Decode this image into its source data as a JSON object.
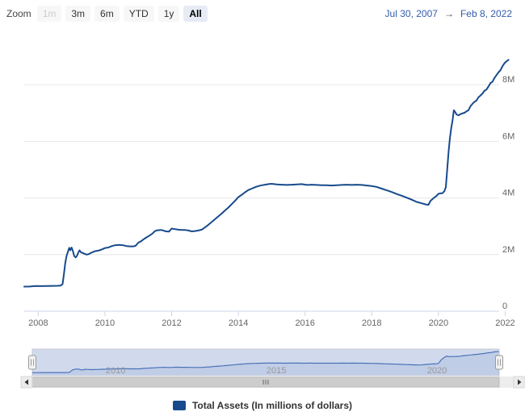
{
  "toolbar": {
    "zoom_label": "Zoom",
    "buttons": [
      {
        "label": "1m",
        "state": "disabled"
      },
      {
        "label": "3m",
        "state": "normal"
      },
      {
        "label": "6m",
        "state": "normal"
      },
      {
        "label": "YTD",
        "state": "normal"
      },
      {
        "label": "1y",
        "state": "normal"
      },
      {
        "label": "All",
        "state": "selected"
      }
    ]
  },
  "range": {
    "from": "Jul 30, 2007",
    "arrow": "→",
    "to": "Feb 8, 2022"
  },
  "legend": {
    "label": "Total Assets (In millions of dollars)"
  },
  "chart_data": {
    "type": "line",
    "title": "",
    "xlabel": "",
    "ylabel": "",
    "xlim": [
      2007.58,
      2022.11
    ],
    "ylim": [
      0,
      9200000
    ],
    "grid": true,
    "legend_position": "bottom",
    "xticks": [
      {
        "value": 2008,
        "label": "2008"
      },
      {
        "value": 2010,
        "label": "2010"
      },
      {
        "value": 2012,
        "label": "2012"
      },
      {
        "value": 2014,
        "label": "2014"
      },
      {
        "value": 2016,
        "label": "2016"
      },
      {
        "value": 2018,
        "label": "2018"
      },
      {
        "value": 2020,
        "label": "2020"
      },
      {
        "value": 2022,
        "label": "2022"
      }
    ],
    "yticks": [
      {
        "value": 0,
        "label": "0"
      },
      {
        "value": 2000000,
        "label": "2M"
      },
      {
        "value": 4000000,
        "label": "4M"
      },
      {
        "value": 6000000,
        "label": "6M"
      },
      {
        "value": 8000000,
        "label": "8M"
      }
    ],
    "nav_xticks": [
      {
        "value": 2010,
        "label": "2010"
      },
      {
        "value": 2015,
        "label": "2015"
      },
      {
        "value": 2020,
        "label": "2020"
      }
    ],
    "colors": {
      "series": "#174a8c",
      "grid": "#e6e6e6",
      "axis_line": "#ccd6eb",
      "tick_label": "#666666",
      "nav_mask": "rgba(102,133,194,0.3)",
      "nav_outline": "#c3c9d5",
      "nav_line": "#4a72b8",
      "nav_fill": "rgba(74,114,184,0.12)",
      "nav_label": "#999999",
      "handle_fill": "#f2f2f2",
      "handle_stroke": "#999999",
      "scroll_track": "#ededed",
      "scroll_thumb": "#cdcdcd",
      "scroll_thumb_border": "#bbbbbb",
      "scroll_arrow": "#333333",
      "accent": "#335cad"
    },
    "series": [
      {
        "name": "Total Assets (In millions of dollars)",
        "points": [
          [
            2007.58,
            870000
          ],
          [
            2007.75,
            872000
          ],
          [
            2007.92,
            891000
          ],
          [
            2008.08,
            885000
          ],
          [
            2008.25,
            889000
          ],
          [
            2008.42,
            893000
          ],
          [
            2008.58,
            898000
          ],
          [
            2008.68,
            910000
          ],
          [
            2008.73,
            960000
          ],
          [
            2008.77,
            1300000
          ],
          [
            2008.81,
            1700000
          ],
          [
            2008.85,
            1950000
          ],
          [
            2008.89,
            2100000
          ],
          [
            2008.93,
            2240000
          ],
          [
            2008.96,
            2150000
          ],
          [
            2009.0,
            2250000
          ],
          [
            2009.04,
            2120000
          ],
          [
            2009.08,
            1950000
          ],
          [
            2009.12,
            1900000
          ],
          [
            2009.16,
            1950000
          ],
          [
            2009.2,
            2070000
          ],
          [
            2009.24,
            2150000
          ],
          [
            2009.28,
            2080000
          ],
          [
            2009.33,
            2060000
          ],
          [
            2009.38,
            2030000
          ],
          [
            2009.45,
            2000000
          ],
          [
            2009.52,
            2020000
          ],
          [
            2009.6,
            2070000
          ],
          [
            2009.7,
            2120000
          ],
          [
            2009.8,
            2140000
          ],
          [
            2009.9,
            2180000
          ],
          [
            2010.0,
            2230000
          ],
          [
            2010.1,
            2250000
          ],
          [
            2010.2,
            2300000
          ],
          [
            2010.3,
            2330000
          ],
          [
            2010.42,
            2340000
          ],
          [
            2010.55,
            2330000
          ],
          [
            2010.65,
            2300000
          ],
          [
            2010.75,
            2290000
          ],
          [
            2010.85,
            2290000
          ],
          [
            2010.92,
            2310000
          ],
          [
            2011.0,
            2420000
          ],
          [
            2011.08,
            2470000
          ],
          [
            2011.17,
            2550000
          ],
          [
            2011.25,
            2610000
          ],
          [
            2011.33,
            2670000
          ],
          [
            2011.42,
            2740000
          ],
          [
            2011.5,
            2830000
          ],
          [
            2011.58,
            2860000
          ],
          [
            2011.67,
            2870000
          ],
          [
            2011.75,
            2850000
          ],
          [
            2011.83,
            2820000
          ],
          [
            2011.92,
            2810000
          ],
          [
            2012.0,
            2920000
          ],
          [
            2012.1,
            2900000
          ],
          [
            2012.2,
            2880000
          ],
          [
            2012.3,
            2870000
          ],
          [
            2012.4,
            2870000
          ],
          [
            2012.5,
            2850000
          ],
          [
            2012.6,
            2820000
          ],
          [
            2012.7,
            2830000
          ],
          [
            2012.8,
            2850000
          ],
          [
            2012.9,
            2880000
          ],
          [
            2013.0,
            2960000
          ],
          [
            2013.1,
            3050000
          ],
          [
            2013.2,
            3150000
          ],
          [
            2013.3,
            3250000
          ],
          [
            2013.4,
            3350000
          ],
          [
            2013.5,
            3450000
          ],
          [
            2013.6,
            3560000
          ],
          [
            2013.7,
            3660000
          ],
          [
            2013.8,
            3780000
          ],
          [
            2013.9,
            3900000
          ],
          [
            2014.0,
            4030000
          ],
          [
            2014.1,
            4110000
          ],
          [
            2014.2,
            4200000
          ],
          [
            2014.3,
            4280000
          ],
          [
            2014.4,
            4330000
          ],
          [
            2014.5,
            4380000
          ],
          [
            2014.6,
            4420000
          ],
          [
            2014.7,
            4450000
          ],
          [
            2014.8,
            4470000
          ],
          [
            2014.9,
            4490000
          ],
          [
            2015.0,
            4500000
          ],
          [
            2015.15,
            4480000
          ],
          [
            2015.3,
            4470000
          ],
          [
            2015.45,
            4460000
          ],
          [
            2015.6,
            4470000
          ],
          [
            2015.75,
            4480000
          ],
          [
            2015.9,
            4490000
          ],
          [
            2016.05,
            4460000
          ],
          [
            2016.2,
            4470000
          ],
          [
            2016.35,
            4460000
          ],
          [
            2016.5,
            4450000
          ],
          [
            2016.65,
            4450000
          ],
          [
            2016.8,
            4440000
          ],
          [
            2016.95,
            4450000
          ],
          [
            2017.1,
            4460000
          ],
          [
            2017.25,
            4470000
          ],
          [
            2017.4,
            4460000
          ],
          [
            2017.55,
            4470000
          ],
          [
            2017.7,
            4460000
          ],
          [
            2017.85,
            4440000
          ],
          [
            2018.0,
            4420000
          ],
          [
            2018.15,
            4390000
          ],
          [
            2018.3,
            4330000
          ],
          [
            2018.45,
            4270000
          ],
          [
            2018.6,
            4210000
          ],
          [
            2018.75,
            4140000
          ],
          [
            2018.9,
            4080000
          ],
          [
            2019.05,
            4010000
          ],
          [
            2019.2,
            3940000
          ],
          [
            2019.35,
            3860000
          ],
          [
            2019.5,
            3810000
          ],
          [
            2019.62,
            3770000
          ],
          [
            2019.7,
            3760000
          ],
          [
            2019.76,
            3900000
          ],
          [
            2019.82,
            3960000
          ],
          [
            2019.88,
            4020000
          ],
          [
            2019.94,
            4070000
          ],
          [
            2020.0,
            4150000
          ],
          [
            2020.06,
            4160000
          ],
          [
            2020.12,
            4170000
          ],
          [
            2020.18,
            4240000
          ],
          [
            2020.22,
            4390000
          ],
          [
            2020.26,
            4970000
          ],
          [
            2020.3,
            5600000
          ],
          [
            2020.34,
            6080000
          ],
          [
            2020.38,
            6460000
          ],
          [
            2020.42,
            6720000
          ],
          [
            2020.46,
            7100000
          ],
          [
            2020.5,
            7040000
          ],
          [
            2020.54,
            6950000
          ],
          [
            2020.6,
            6920000
          ],
          [
            2020.66,
            6960000
          ],
          [
            2020.72,
            6990000
          ],
          [
            2020.78,
            7010000
          ],
          [
            2020.84,
            7060000
          ],
          [
            2020.9,
            7100000
          ],
          [
            2020.96,
            7240000
          ],
          [
            2021.02,
            7330000
          ],
          [
            2021.08,
            7400000
          ],
          [
            2021.14,
            7440000
          ],
          [
            2021.2,
            7560000
          ],
          [
            2021.26,
            7620000
          ],
          [
            2021.32,
            7690000
          ],
          [
            2021.38,
            7790000
          ],
          [
            2021.44,
            7830000
          ],
          [
            2021.5,
            7940000
          ],
          [
            2021.56,
            8060000
          ],
          [
            2021.62,
            8110000
          ],
          [
            2021.68,
            8240000
          ],
          [
            2021.74,
            8340000
          ],
          [
            2021.8,
            8440000
          ],
          [
            2021.86,
            8520000
          ],
          [
            2021.92,
            8660000
          ],
          [
            2021.98,
            8760000
          ],
          [
            2022.04,
            8830000
          ],
          [
            2022.1,
            8880000
          ]
        ]
      }
    ]
  }
}
